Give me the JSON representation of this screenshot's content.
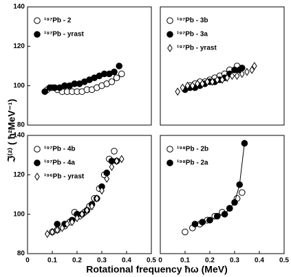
{
  "xlabel": "Rotational frequency ħω (MeV)",
  "ylabel": "ℑ⁽²⁾ ( ħ²MeV⁻¹)",
  "chart_data": [
    {
      "type": "scatter",
      "xlim": [
        0,
        0.5
      ],
      "ylim": [
        80,
        140
      ],
      "yticks": [
        80,
        100,
        120,
        140
      ],
      "series": [
        {
          "name": "¹⁹⁷Pb - 2",
          "marker": "circle-open",
          "color": "#000000",
          "x": [
            0.08,
            0.1,
            0.12,
            0.14,
            0.16,
            0.18,
            0.2,
            0.22,
            0.24,
            0.26,
            0.28,
            0.3,
            0.32,
            0.34,
            0.36,
            0.38
          ],
          "values": [
            98,
            99,
            98,
            97,
            97,
            97,
            97,
            97,
            98,
            98,
            99,
            100,
            101,
            102,
            104,
            106
          ]
        },
        {
          "name": "¹⁹⁷Pb - yrast",
          "marker": "circle-filled",
          "color": "#000000",
          "x": [
            0.07,
            0.09,
            0.11,
            0.13,
            0.15,
            0.17,
            0.19,
            0.21,
            0.23,
            0.25,
            0.27,
            0.29,
            0.31,
            0.33,
            0.35,
            0.37
          ],
          "values": [
            97,
            99,
            99,
            99,
            100,
            100,
            101,
            101,
            102,
            103,
            104,
            105,
            106,
            106,
            107,
            110
          ]
        }
      ]
    },
    {
      "type": "scatter",
      "xlim": [
        0,
        0.5
      ],
      "ylim": [
        80,
        140
      ],
      "series": [
        {
          "name": "¹⁹⁷Pb - 3b",
          "marker": "circle-open",
          "color": "#000000",
          "x": [
            0.12,
            0.14,
            0.16,
            0.18,
            0.2,
            0.22,
            0.24,
            0.26,
            0.28,
            0.31
          ],
          "values": [
            100,
            101,
            102,
            102,
            103,
            104,
            105,
            106,
            108,
            110
          ]
        },
        {
          "name": "¹⁹⁷Pb - 3a",
          "marker": "circle-filled",
          "color": "#000000",
          "x": [
            0.1,
            0.12,
            0.14,
            0.16,
            0.18,
            0.2,
            0.22,
            0.24,
            0.26,
            0.28,
            0.3,
            0.32,
            0.33
          ],
          "values": [
            98,
            99,
            99,
            100,
            101,
            102,
            102,
            103,
            104,
            106,
            108,
            108,
            109
          ]
        },
        {
          "name": "¹⁹⁷Pb - yrast",
          "marker": "diamond-open",
          "color": "#000000",
          "x": [
            0.07,
            0.09,
            0.11,
            0.13,
            0.15,
            0.17,
            0.19,
            0.21,
            0.23,
            0.25,
            0.27,
            0.29,
            0.31,
            0.33,
            0.35,
            0.37,
            0.38
          ],
          "values": [
            97,
            99,
            100,
            100,
            101,
            101,
            102,
            102,
            103,
            103,
            104,
            105,
            105,
            106,
            107,
            108,
            110
          ]
        }
      ]
    },
    {
      "type": "scatter",
      "xlim": [
        0,
        0.5
      ],
      "ylim": [
        80,
        140
      ],
      "yticks": [
        80,
        100,
        120,
        140
      ],
      "xticks": [
        0,
        0.1,
        0.2,
        0.3,
        0.4,
        0.5
      ],
      "series": [
        {
          "name": "¹⁹⁷Pb - 4b",
          "marker": "circle-open",
          "color": "#000000",
          "x": [
            0.1,
            0.12,
            0.15,
            0.17,
            0.19,
            0.21,
            0.23,
            0.25,
            0.27,
            0.29,
            0.31,
            0.33,
            0.35
          ],
          "values": [
            91,
            92,
            94,
            96,
            101,
            99,
            101,
            104,
            108,
            113,
            120,
            128,
            132
          ]
        },
        {
          "name": "¹⁹⁷Pb - 4a",
          "marker": "circle-filled",
          "color": "#000000",
          "x": [
            0.12,
            0.15,
            0.18,
            0.2,
            0.22,
            0.24,
            0.26,
            0.28,
            0.3,
            0.32,
            0.34,
            0.36
          ],
          "values": [
            95,
            95,
            97,
            100,
            100,
            102,
            105,
            108,
            114,
            121,
            127,
            127
          ]
        },
        {
          "name": "¹⁹⁶Pb - yrast",
          "marker": "diamond-open",
          "color": "#000000",
          "x": [
            0.08,
            0.1,
            0.12,
            0.14,
            0.16,
            0.18,
            0.2,
            0.22,
            0.24,
            0.26,
            0.28,
            0.3,
            0.32,
            0.34,
            0.36,
            0.38
          ],
          "values": [
            90,
            91,
            92,
            93,
            95,
            96,
            98,
            100,
            102,
            104,
            108,
            112,
            118,
            124,
            127,
            128
          ]
        }
      ]
    },
    {
      "type": "scatter",
      "xlim": [
        0,
        0.5
      ],
      "ylim": [
        80,
        140
      ],
      "xticks": [
        0,
        0.1,
        0.2,
        0.3,
        0.4,
        0.5
      ],
      "series": [
        {
          "name": "¹⁹⁸Pb - 2b",
          "marker": "circle-open",
          "color": "#000000",
          "x": [
            0.1,
            0.13,
            0.16,
            0.19,
            0.22,
            0.25,
            0.28,
            0.31,
            0.33
          ],
          "values": [
            91,
            93,
            95,
            97,
            99,
            101,
            103,
            108,
            111
          ]
        },
        {
          "name": "¹⁹⁸Pb - 2a",
          "marker": "circle-filled",
          "color": "#000000",
          "line": true,
          "x": [
            0.14,
            0.17,
            0.2,
            0.23,
            0.26,
            0.28,
            0.3,
            0.32,
            0.34
          ],
          "values": [
            95,
            96,
            97,
            99,
            100,
            103,
            106,
            115,
            136
          ]
        }
      ]
    }
  ]
}
